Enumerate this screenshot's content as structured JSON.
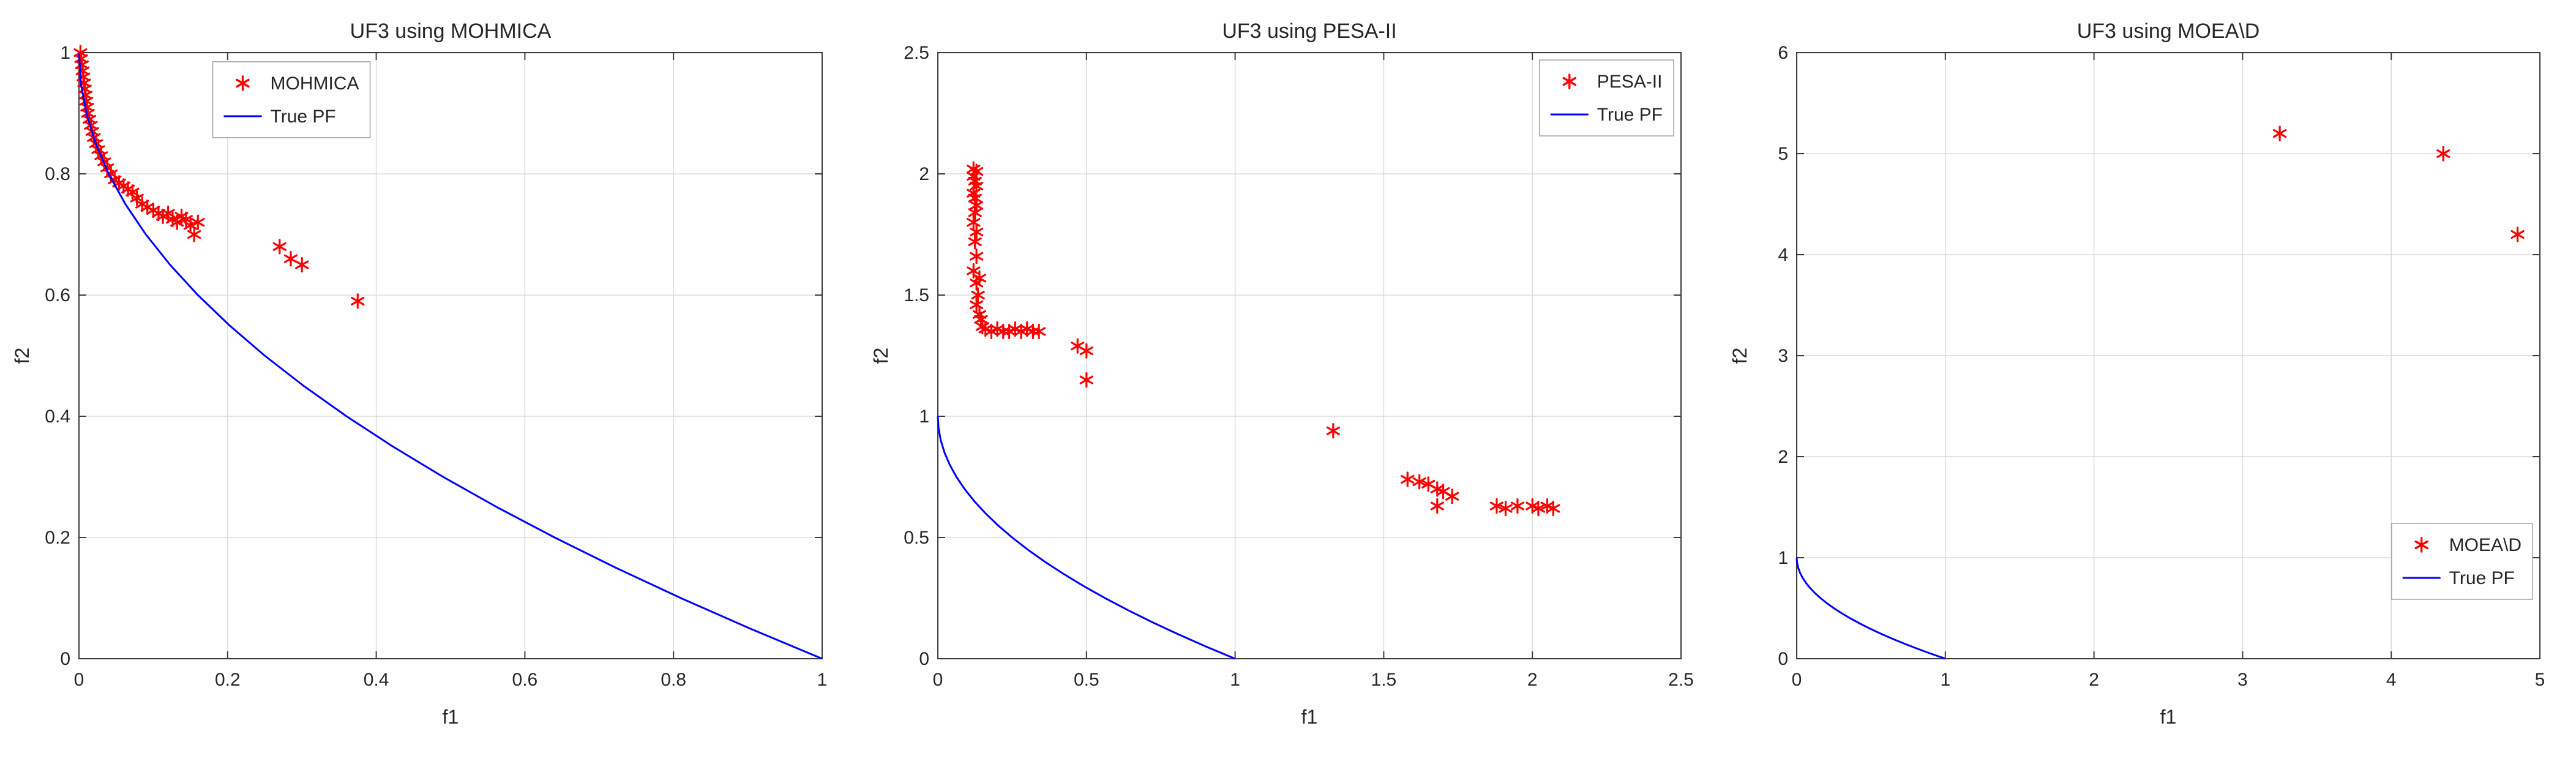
{
  "colors": {
    "marker_red": "#ff0000",
    "pf_blue": "#0000ff",
    "grid": "#dbdbdb",
    "axis": "#3b3b3b",
    "text": "#262626",
    "legend_border": "#a8a8a8",
    "background": "#ffffff"
  },
  "chart_data": [
    {
      "type": "scatter",
      "title": "UF3 using MOHMICA",
      "xlabel": "f1",
      "ylabel": "f2",
      "xlim": [
        0,
        1
      ],
      "ylim": [
        0,
        1
      ],
      "xticks": [
        0,
        0.2,
        0.4,
        0.6,
        0.8,
        1
      ],
      "yticks": [
        0,
        0.2,
        0.4,
        0.6,
        0.8,
        1
      ],
      "grid": true,
      "legend": {
        "anchor": "custom",
        "x": 0.18,
        "y": 0.015,
        "entries": [
          {
            "label": "MOHMICA",
            "type": "marker",
            "color": "#ff0000"
          },
          {
            "label": "True PF",
            "type": "line",
            "color": "#0000ff"
          }
        ]
      },
      "series": [
        {
          "name": "MOHMICA",
          "type": "scatter",
          "color": "#ff0000",
          "marker": "asterisk",
          "x": [
            0.002,
            0.003,
            0.004,
            0.005,
            0.006,
            0.007,
            0.008,
            0.009,
            0.01,
            0.011,
            0.012,
            0.014,
            0.016,
            0.018,
            0.02,
            0.023,
            0.026,
            0.03,
            0.034,
            0.038,
            0.043,
            0.048,
            0.054,
            0.06,
            0.066,
            0.072,
            0.078,
            0.085,
            0.092,
            0.1,
            0.107,
            0.113,
            0.12,
            0.126,
            0.132,
            0.138,
            0.144,
            0.15,
            0.155,
            0.16,
            0.27,
            0.285,
            0.3,
            0.375
          ],
          "y": [
            1.0,
            0.99,
            0.98,
            0.97,
            0.96,
            0.95,
            0.94,
            0.93,
            0.92,
            0.91,
            0.9,
            0.89,
            0.88,
            0.87,
            0.86,
            0.85,
            0.84,
            0.83,
            0.82,
            0.81,
            0.8,
            0.79,
            0.785,
            0.78,
            0.775,
            0.77,
            0.76,
            0.75,
            0.745,
            0.74,
            0.735,
            0.73,
            0.735,
            0.725,
            0.72,
            0.73,
            0.725,
            0.715,
            0.7,
            0.72,
            0.68,
            0.66,
            0.65,
            0.59
          ]
        },
        {
          "name": "True PF",
          "type": "line",
          "color": "#0000ff",
          "x": [
            0,
            0.0025,
            0.01,
            0.0225,
            0.04,
            0.0625,
            0.09,
            0.1225,
            0.16,
            0.2025,
            0.25,
            0.3025,
            0.36,
            0.4225,
            0.49,
            0.5625,
            0.64,
            0.7225,
            0.81,
            0.9025,
            1
          ],
          "y": [
            1,
            0.95,
            0.9,
            0.85,
            0.8,
            0.75,
            0.7,
            0.65,
            0.6,
            0.55,
            0.5,
            0.45,
            0.4,
            0.35,
            0.3,
            0.25,
            0.2,
            0.15,
            0.1,
            0.05,
            0
          ]
        }
      ]
    },
    {
      "type": "scatter",
      "title": "UF3 using PESA-II",
      "xlabel": "f1",
      "ylabel": "f2",
      "xlim": [
        0,
        2.5
      ],
      "ylim": [
        0,
        2.5
      ],
      "xticks": [
        0,
        0.5,
        1,
        1.5,
        2,
        2.5
      ],
      "yticks": [
        0,
        0.5,
        1,
        1.5,
        2,
        2.5
      ],
      "grid": true,
      "legend": {
        "anchor": "ne",
        "entries": [
          {
            "label": "PESA-II",
            "type": "marker",
            "color": "#ff0000"
          },
          {
            "label": "True PF",
            "type": "line",
            "color": "#0000ff"
          }
        ]
      },
      "series": [
        {
          "name": "PESA-II",
          "type": "scatter",
          "color": "#ff0000",
          "marker": "asterisk",
          "x": [
            0.12,
            0.13,
            0.12,
            0.125,
            0.13,
            0.12,
            0.125,
            0.13,
            0.125,
            0.12,
            0.13,
            0.125,
            0.13,
            0.12,
            0.14,
            0.13,
            0.135,
            0.13,
            0.14,
            0.145,
            0.15,
            0.16,
            0.18,
            0.2,
            0.22,
            0.24,
            0.26,
            0.28,
            0.3,
            0.32,
            0.34,
            0.47,
            0.5,
            0.5,
            1.33,
            1.58,
            1.62,
            1.65,
            1.68,
            1.7,
            1.73,
            1.68,
            1.88,
            1.91,
            1.95,
            2.0,
            2.02,
            2.05,
            2.07
          ],
          "y": [
            2.02,
            2.01,
            1.99,
            1.97,
            1.95,
            1.92,
            1.9,
            1.87,
            1.84,
            1.8,
            1.76,
            1.72,
            1.66,
            1.6,
            1.57,
            1.55,
            1.5,
            1.46,
            1.42,
            1.4,
            1.37,
            1.36,
            1.35,
            1.36,
            1.35,
            1.35,
            1.36,
            1.35,
            1.36,
            1.35,
            1.35,
            1.29,
            1.27,
            1.15,
            0.94,
            0.74,
            0.73,
            0.72,
            0.7,
            0.69,
            0.67,
            0.63,
            0.63,
            0.62,
            0.63,
            0.63,
            0.62,
            0.63,
            0.62
          ]
        },
        {
          "name": "True PF",
          "type": "line",
          "color": "#0000ff",
          "x": [
            0,
            0.0025,
            0.01,
            0.0225,
            0.04,
            0.0625,
            0.09,
            0.1225,
            0.16,
            0.2025,
            0.25,
            0.3025,
            0.36,
            0.4225,
            0.49,
            0.5625,
            0.64,
            0.7225,
            0.81,
            0.9025,
            1
          ],
          "y": [
            1,
            0.95,
            0.9,
            0.85,
            0.8,
            0.75,
            0.7,
            0.65,
            0.6,
            0.55,
            0.5,
            0.45,
            0.4,
            0.35,
            0.3,
            0.25,
            0.2,
            0.15,
            0.1,
            0.05,
            0
          ]
        }
      ]
    },
    {
      "type": "scatter",
      "title": "UF3 using MOEA\\D",
      "xlabel": "f1",
      "ylabel": "f2",
      "xlim": [
        0,
        5
      ],
      "ylim": [
        0,
        6
      ],
      "xticks": [
        0,
        1,
        2,
        3,
        4,
        5
      ],
      "yticks": [
        0,
        1,
        2,
        3,
        4,
        5,
        6
      ],
      "grid": true,
      "legend": {
        "anchor": "se",
        "offset_y": -85,
        "entries": [
          {
            "label": "MOEA\\D",
            "type": "marker",
            "color": "#ff0000"
          },
          {
            "label": "True PF",
            "type": "line",
            "color": "#0000ff"
          }
        ]
      },
      "series": [
        {
          "name": "MOEA\\D",
          "type": "scatter",
          "color": "#ff0000",
          "marker": "asterisk",
          "x": [
            3.25,
            4.35,
            4.85
          ],
          "y": [
            5.2,
            5.0,
            4.2
          ]
        },
        {
          "name": "True PF",
          "type": "line",
          "color": "#0000ff",
          "x": [
            0,
            0.0025,
            0.01,
            0.0225,
            0.04,
            0.0625,
            0.09,
            0.1225,
            0.16,
            0.2025,
            0.25,
            0.3025,
            0.36,
            0.4225,
            0.49,
            0.5625,
            0.64,
            0.7225,
            0.81,
            0.9025,
            1
          ],
          "y": [
            1,
            0.95,
            0.9,
            0.85,
            0.8,
            0.75,
            0.7,
            0.65,
            0.6,
            0.55,
            0.5,
            0.45,
            0.4,
            0.35,
            0.3,
            0.25,
            0.2,
            0.15,
            0.1,
            0.05,
            0
          ]
        }
      ]
    }
  ]
}
